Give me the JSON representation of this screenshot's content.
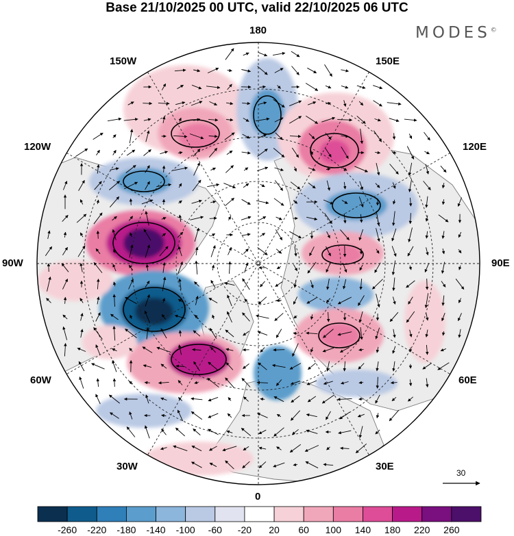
{
  "title": "Base 21/10/2025 00 UTC, valid 22/10/2025 06 UTC",
  "brand": {
    "text": "MODES",
    "mark": "©"
  },
  "longitude_labels": {
    "top": "180",
    "bottom": "0",
    "left": "90W",
    "right": "90E",
    "upper_left_1": "150W",
    "upper_left_2": "120W",
    "upper_right_1": "150E",
    "upper_right_2": "120E",
    "lower_left_1": "60W",
    "lower_left_2": "30W",
    "lower_right_1": "60E",
    "lower_right_2": "30E"
  },
  "reference_vector": {
    "label": "30",
    "icon": "arrow-right-icon"
  },
  "colorbar": {
    "ticks": [
      "-260",
      "-220",
      "-180",
      "-140",
      "-100",
      "-60",
      "-20",
      "20",
      "60",
      "100",
      "140",
      "180",
      "220",
      "260"
    ],
    "colors": [
      "#0b2f4f",
      "#0f5c8c",
      "#2f7fb9",
      "#5b9dcc",
      "#8cb6dc",
      "#bac9e4",
      "#e2e3f0",
      "#ffffff",
      "#f6d2d8",
      "#f1a7ba",
      "#ea7da4",
      "#de4d97",
      "#b91a8a",
      "#7a0f7f",
      "#4c0f6a"
    ]
  },
  "map_colors": {
    "land": "#ececec",
    "coast": "#7a7a7a",
    "grid": "#222222",
    "arrow": "#000000"
  }
}
